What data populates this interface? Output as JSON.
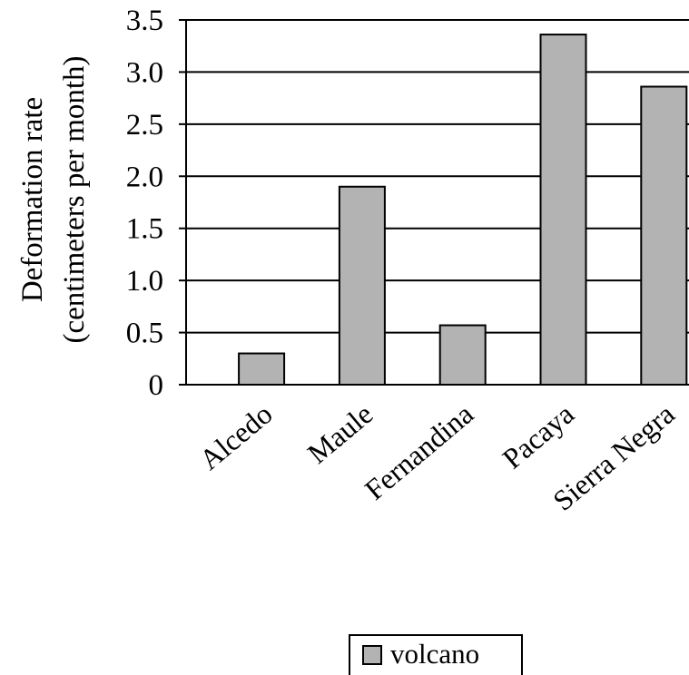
{
  "chart_data": {
    "type": "bar",
    "title": "",
    "ylabel_line1": "Deformation rate",
    "ylabel_line2": "(centimeters per month)",
    "xlabel": "",
    "categories": [
      "Alcedo",
      "Maule",
      "Fernandina",
      "Pacaya",
      "Sierra Negra"
    ],
    "values": [
      0.3,
      1.9,
      0.57,
      3.36,
      2.86
    ],
    "ylim": [
      0,
      3.5
    ],
    "yticks": [
      0,
      0.5,
      1.0,
      1.5,
      2.0,
      2.5,
      3.0,
      3.5
    ],
    "ytick_labels": [
      "0",
      "0.5",
      "1.0",
      "1.5",
      "2.0",
      "2.5",
      "3.0",
      "3.5"
    ],
    "grid": true,
    "bar_color": "#b3b3b3",
    "legend": {
      "label": "volcano",
      "position": "bottom-right"
    }
  }
}
